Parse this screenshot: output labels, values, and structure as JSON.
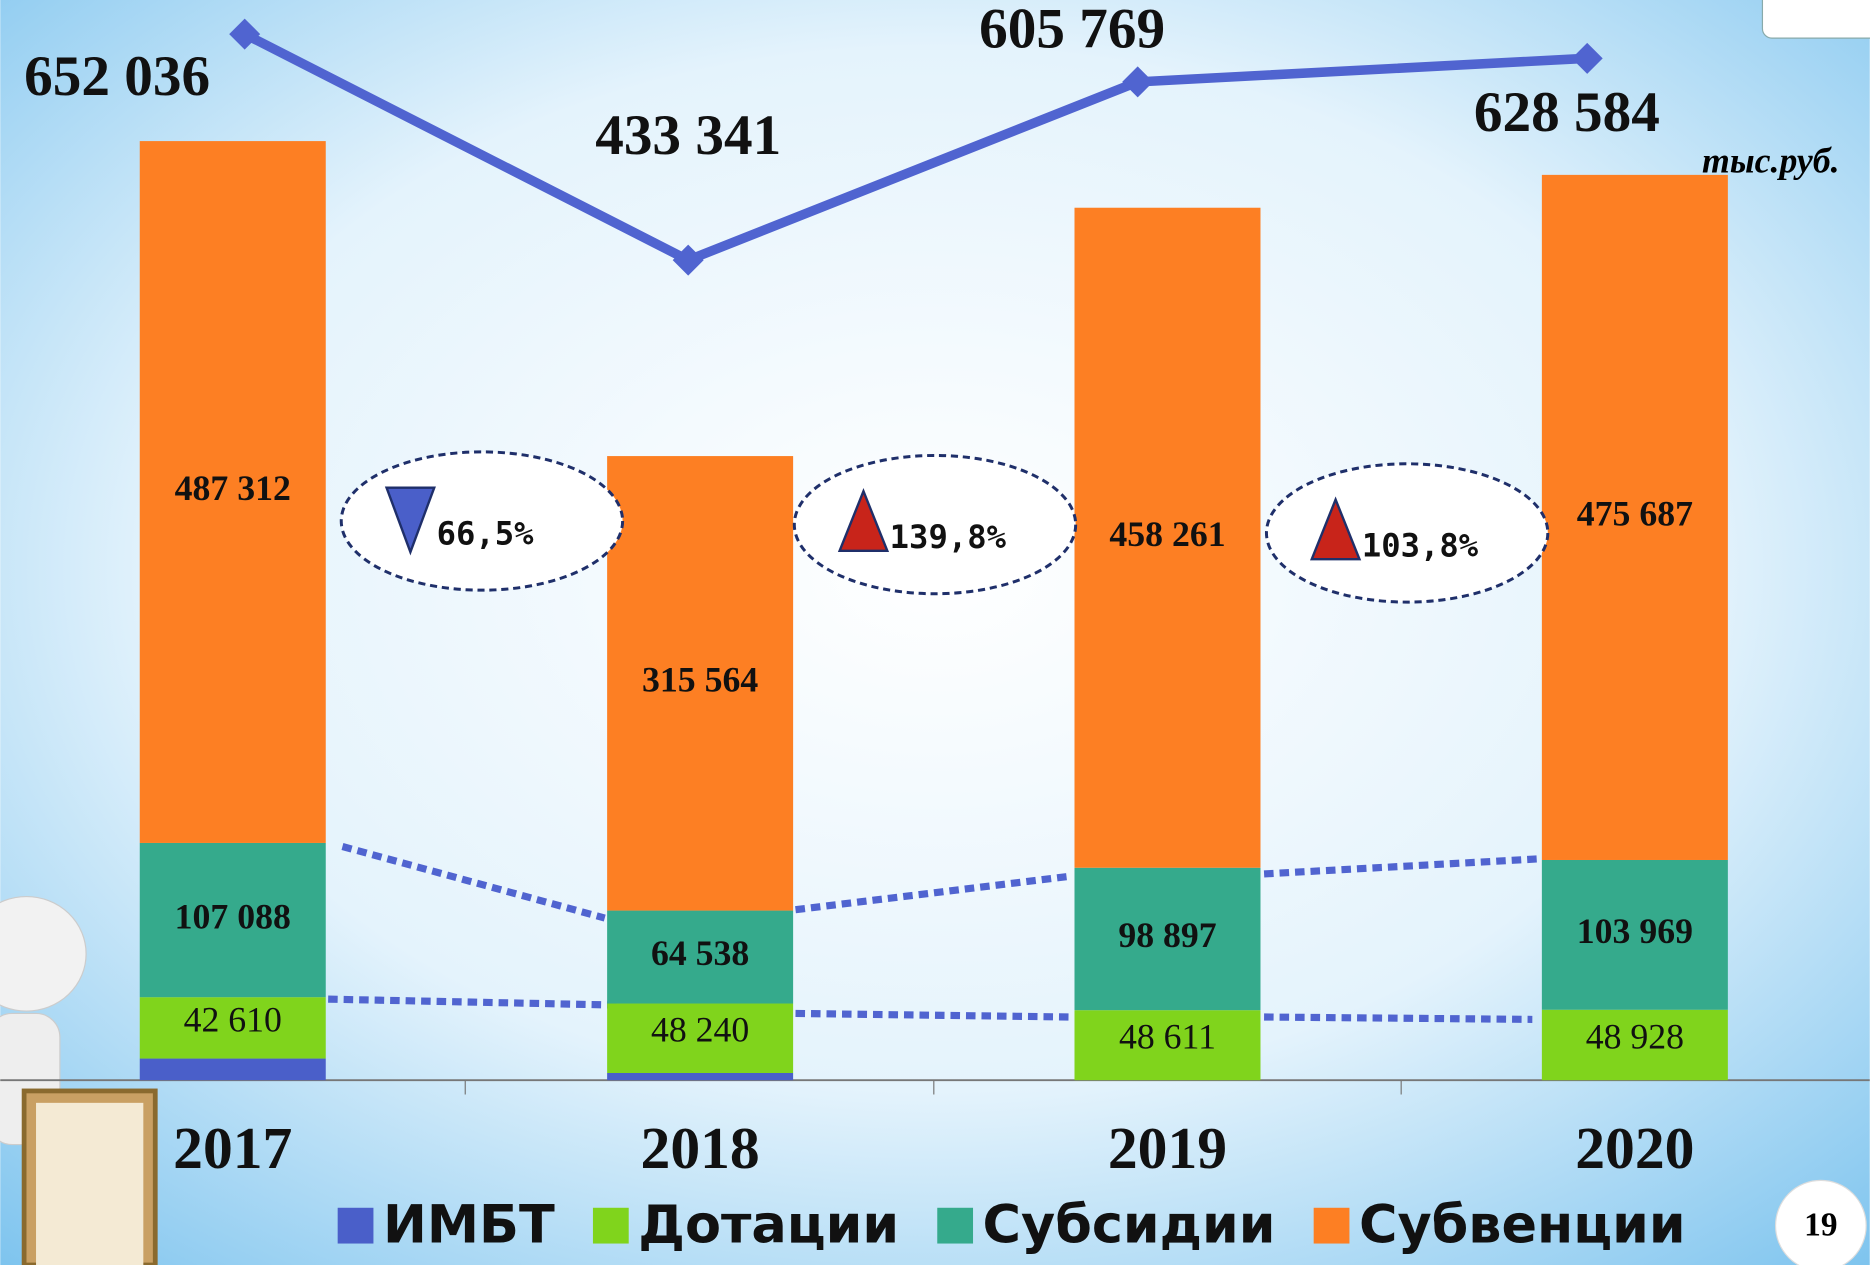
{
  "chart_data": {
    "type": "stacked-bar",
    "categories": [
      "2017",
      "2018",
      "2019",
      "2020"
    ],
    "series": [
      {
        "name": "ИМБТ",
        "color": "#4a5fc9",
        "values": [
          15026,
          4999,
          0,
          0
        ]
      },
      {
        "name": "Дотации",
        "color": "#80d41c",
        "values": [
          42610,
          48240,
          48611,
          48928
        ],
        "value_labels": [
          "42 610",
          "48 240",
          "48 611",
          "48 928"
        ]
      },
      {
        "name": "Субсидии",
        "color": "#35aa8c",
        "values": [
          107088,
          64538,
          98897,
          103969
        ],
        "value_labels": [
          "107 088",
          "64 538",
          "98 897",
          "103 969"
        ]
      },
      {
        "name": "Субвенции",
        "color": "#fd7f23",
        "values": [
          487312,
          315564,
          458261,
          475687
        ],
        "value_labels": [
          "487 312",
          "315 564",
          "458 261",
          "475 687"
        ]
      }
    ],
    "line": {
      "axis": "y2",
      "color": "#5064d0",
      "values": [
        652036,
        433341,
        605769,
        628584
      ],
      "value_labels": [
        "652 036",
        "433 341",
        "605 769",
        "628 584"
      ]
    },
    "ylim": [
      0,
      750000
    ],
    "y2lim": [
      -360000,
      685000
    ],
    "unit": "тыс.руб.",
    "annotations": [
      {
        "text": "66,5%",
        "direction": "down"
      },
      {
        "text": "139,8%",
        "direction": "up"
      },
      {
        "text": "103,8%",
        "direction": "up"
      }
    ],
    "page_number": "19"
  }
}
